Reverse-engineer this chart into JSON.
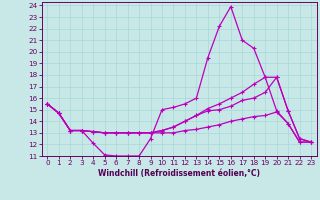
{
  "xlabel": "Windchill (Refroidissement éolien,°C)",
  "background_color": "#c8e8e8",
  "line_color": "#bb00bb",
  "grid_color": "#a8d8d8",
  "xlim": [
    -0.5,
    23.5
  ],
  "ylim": [
    11,
    24.3
  ],
  "xticks": [
    0,
    1,
    2,
    3,
    4,
    5,
    6,
    7,
    8,
    9,
    10,
    11,
    12,
    13,
    14,
    15,
    16,
    17,
    18,
    19,
    20,
    21,
    22,
    23
  ],
  "yticks": [
    11,
    12,
    13,
    14,
    15,
    16,
    17,
    18,
    19,
    20,
    21,
    22,
    23,
    24
  ],
  "series": [
    [
      15.5,
      14.7,
      13.2,
      13.2,
      12.1,
      11.1,
      11.0,
      11.0,
      11.0,
      12.5,
      15.0,
      15.2,
      15.5,
      16.0,
      19.5,
      22.2,
      23.9,
      21.0,
      20.3,
      17.8,
      14.9,
      13.8,
      12.2,
      12.2
    ],
    [
      15.5,
      14.7,
      13.2,
      13.2,
      13.1,
      13.0,
      13.0,
      13.0,
      13.0,
      13.0,
      13.2,
      13.5,
      14.0,
      14.5,
      15.1,
      15.5,
      16.0,
      16.5,
      17.2,
      17.8,
      17.8,
      14.9,
      12.5,
      12.2
    ],
    [
      15.5,
      14.7,
      13.2,
      13.2,
      13.1,
      13.0,
      13.0,
      13.0,
      13.0,
      13.0,
      13.2,
      13.5,
      14.0,
      14.5,
      14.9,
      15.0,
      15.3,
      15.8,
      16.0,
      16.5,
      17.8,
      14.9,
      12.5,
      12.2
    ],
    [
      15.5,
      14.7,
      13.2,
      13.2,
      13.1,
      13.0,
      13.0,
      13.0,
      13.0,
      13.0,
      13.0,
      13.0,
      13.2,
      13.3,
      13.5,
      13.7,
      14.0,
      14.2,
      14.4,
      14.5,
      14.8,
      13.8,
      12.2,
      12.2
    ]
  ]
}
